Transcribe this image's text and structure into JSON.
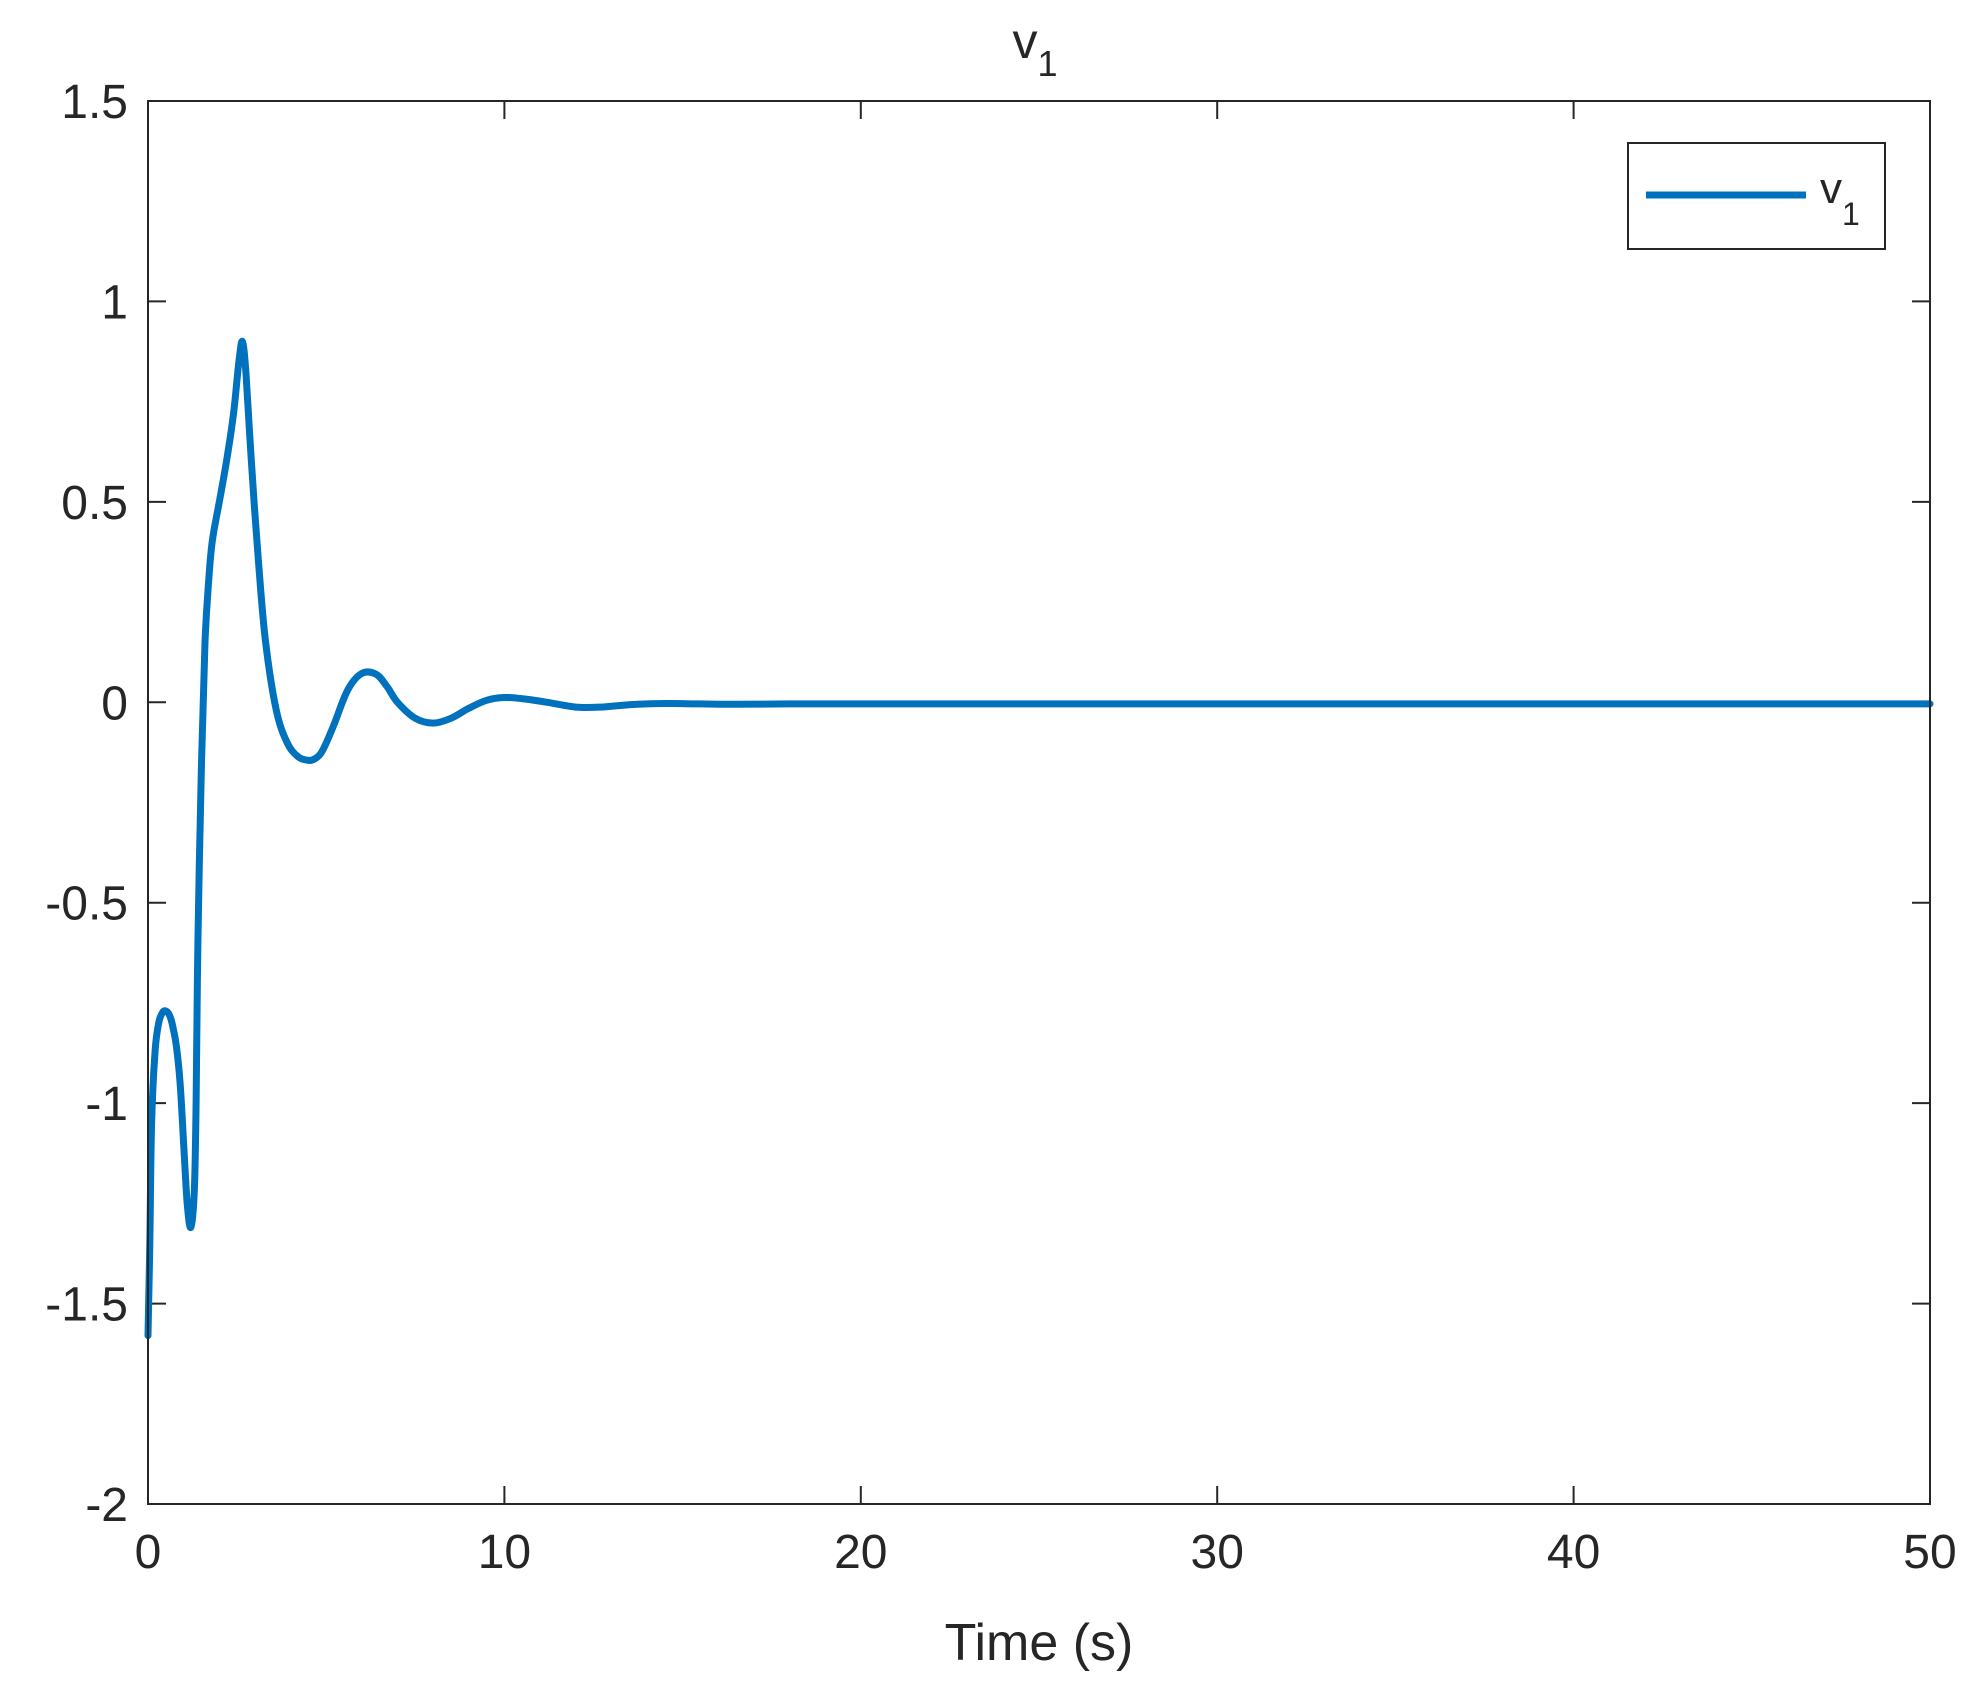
{
  "chart_data": {
    "type": "line",
    "title": "v",
    "title_subscript": "1",
    "xlabel": "Time (s)",
    "ylabel": "",
    "xlim": [
      0,
      50
    ],
    "ylim": [
      -2,
      1.5
    ],
    "xticks": [
      0,
      10,
      20,
      30,
      40,
      50
    ],
    "xtick_labels": [
      "0",
      "10",
      "20",
      "30",
      "40",
      "50"
    ],
    "yticks": [
      -2,
      -1.5,
      -1,
      -0.5,
      0,
      0.5,
      1,
      1.5
    ],
    "ytick_labels": [
      "-2",
      "-1.5",
      "-1",
      "-0.5",
      "0",
      "0.5",
      "1",
      "1.5"
    ],
    "grid": false,
    "legend_position": "top-right",
    "series": [
      {
        "name": "v",
        "name_subscript": "1",
        "color": "#0072BD",
        "x": [
          0,
          0.05,
          0.1,
          0.2,
          0.3,
          0.4,
          0.5,
          0.6,
          0.7,
          0.8,
          0.9,
          1.0,
          1.1,
          1.2,
          1.3,
          1.35,
          1.4,
          1.5,
          1.6,
          1.7,
          1.8,
          2.0,
          2.2,
          2.4,
          2.55,
          2.65,
          2.75,
          2.9,
          3.1,
          3.3,
          3.6,
          3.9,
          4.2,
          4.5,
          4.7,
          4.9,
          5.2,
          5.6,
          6.0,
          6.4,
          6.7,
          7.0,
          7.5,
          8.0,
          8.5,
          9.0,
          9.5,
          10.0,
          10.6,
          11.2,
          12.0,
          12.7,
          13.5,
          14.5,
          15.5,
          16.5,
          18.0,
          20.0,
          25.0,
          30.0,
          35.0,
          40.0,
          45.0,
          50.0
        ],
        "y": [
          -1.58,
          -1.35,
          -1.05,
          -0.87,
          -0.8,
          -0.775,
          -0.77,
          -0.78,
          -0.81,
          -0.86,
          -0.95,
          -1.1,
          -1.25,
          -1.31,
          -1.22,
          -1.0,
          -0.6,
          -0.15,
          0.15,
          0.3,
          0.4,
          0.5,
          0.6,
          0.72,
          0.85,
          0.9,
          0.82,
          0.6,
          0.35,
          0.15,
          -0.02,
          -0.1,
          -0.135,
          -0.145,
          -0.14,
          -0.12,
          -0.06,
          0.03,
          0.072,
          0.07,
          0.04,
          0.0,
          -0.04,
          -0.052,
          -0.04,
          -0.015,
          0.005,
          0.012,
          0.008,
          0.0,
          -0.012,
          -0.012,
          -0.006,
          -0.003,
          -0.004,
          -0.005,
          -0.004,
          -0.004,
          -0.004,
          -0.004,
          -0.004,
          -0.004,
          -0.004,
          -0.004
        ]
      }
    ]
  }
}
